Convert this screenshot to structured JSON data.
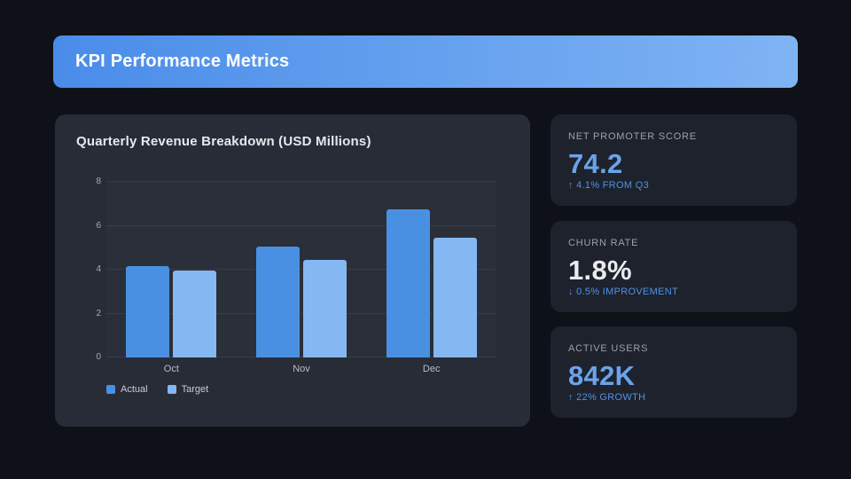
{
  "header": {
    "title": "KPI Performance Metrics"
  },
  "colors": {
    "banner_gradient_from": "#4a8ce9",
    "banner_gradient_to": "#7fb4f4",
    "accent_blue": "#6ba3ea",
    "delta_blue": "#4f93e6",
    "actual_bar": "#4a90e2",
    "target_bar": "#85b8f3"
  },
  "chart_card": {
    "title": "Quarterly Revenue Breakdown (USD Millions)"
  },
  "chart_data": {
    "type": "bar",
    "title": "Quarterly Revenue Breakdown (USD Millions)",
    "categories": [
      "Oct",
      "Nov",
      "Dec"
    ],
    "series": [
      {
        "name": "Actual",
        "color": "#4a90e2",
        "values": [
          4.15,
          5.05,
          6.75
        ]
      },
      {
        "name": "Target",
        "color": "#85b8f3",
        "values": [
          3.95,
          4.45,
          5.45
        ]
      }
    ],
    "xlabel": "",
    "ylabel": "",
    "ylim": [
      0,
      8
    ],
    "yticks": [
      0,
      2,
      4,
      6,
      8
    ],
    "grid": true,
    "legend_position": "bottom-left"
  },
  "kpi": {
    "cards": [
      {
        "label": "NET PROMOTER SCORE",
        "value": "74.2",
        "delta": "↑ 4.1% FROM Q3",
        "value_color": "#6ba3ea"
      },
      {
        "label": "CHURN RATE",
        "value": "1.8%",
        "delta": "↓ 0.5% IMPROVEMENT",
        "value_color": "#e9ebee"
      },
      {
        "label": "ACTIVE USERS",
        "value": "842K",
        "delta": "↑ 22% GROWTH",
        "value_color": "#6ba3ea"
      }
    ]
  }
}
